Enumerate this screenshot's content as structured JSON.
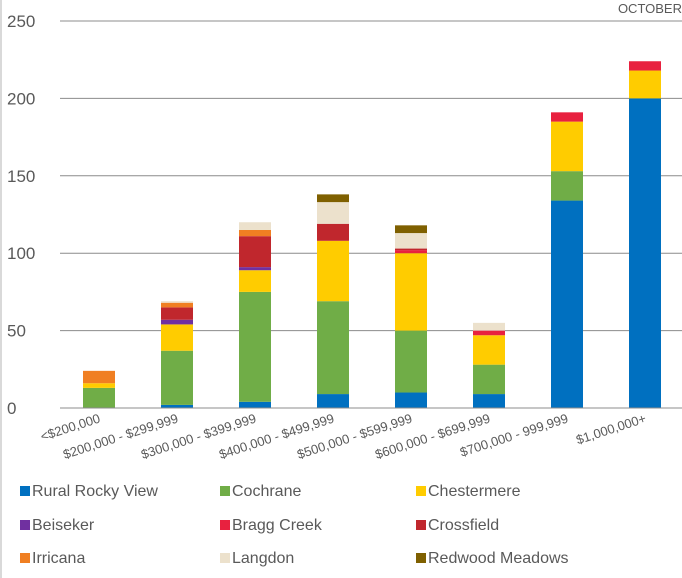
{
  "corner_label": "OCTOBER",
  "chart_data": {
    "type": "bar",
    "stacked": true,
    "title": "",
    "xlabel": "",
    "ylabel": "",
    "ylim": [
      0,
      250
    ],
    "yticks": [
      0,
      50,
      100,
      150,
      200,
      250
    ],
    "grid": true,
    "legend_position": "bottom",
    "categories": [
      "<$200,000",
      "$200,000 - $299,999",
      "$300,000 - $399,999",
      "$400,000 - $499,999",
      "$500,000 - $599,999",
      "$600,000 - $699,999",
      "$700,000 - 999,999",
      "$1,000,000+"
    ],
    "series": [
      {
        "name": "Rural Rocky View",
        "color": "#0070c0",
        "values": [
          0,
          2,
          4,
          9,
          10,
          9,
          134,
          200
        ]
      },
      {
        "name": "Cochrane",
        "color": "#70ad47",
        "values": [
          13,
          35,
          71,
          60,
          40,
          19,
          19,
          0
        ]
      },
      {
        "name": "Chestermere",
        "color": "#ffcc00",
        "values": [
          3,
          17,
          14,
          39,
          50,
          19,
          32,
          18
        ]
      },
      {
        "name": "Beiseker",
        "color": "#7030a0",
        "values": [
          0,
          3,
          2,
          0,
          0,
          0,
          0,
          0
        ]
      },
      {
        "name": "Bragg Creek",
        "color": "#e8213f",
        "values": [
          0,
          0,
          0,
          0,
          2,
          3,
          6,
          6
        ]
      },
      {
        "name": "Crossfield",
        "color": "#c0272d",
        "values": [
          0,
          8,
          20,
          11,
          1,
          0,
          0,
          0
        ]
      },
      {
        "name": "Irricana",
        "color": "#f07f22",
        "values": [
          8,
          3,
          4,
          0,
          0,
          0,
          0,
          0
        ]
      },
      {
        "name": "Langdon",
        "color": "#ece1cc",
        "values": [
          0,
          1,
          5,
          14,
          10,
          5,
          0,
          0
        ]
      },
      {
        "name": "Redwood Meadows",
        "color": "#7f6000",
        "values": [
          0,
          0,
          0,
          5,
          5,
          0,
          0,
          0
        ]
      }
    ]
  }
}
